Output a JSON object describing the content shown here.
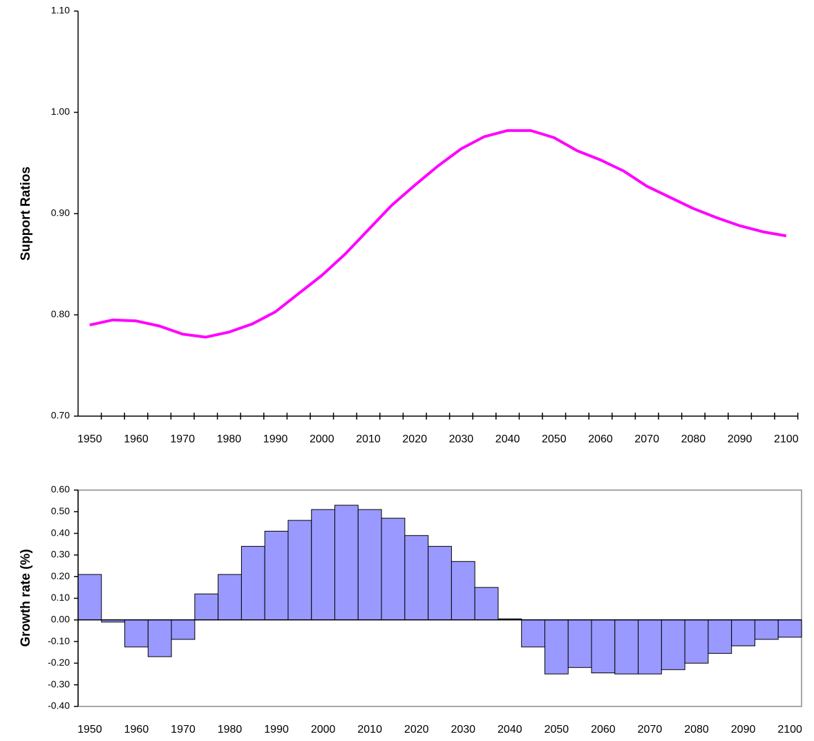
{
  "chart_data": [
    {
      "type": "line",
      "ylabel": "Support Ratios",
      "color": "#ff00ff",
      "categories": [
        "1950",
        null,
        "1960",
        null,
        "1970",
        null,
        "1980",
        null,
        "1990",
        null,
        "2000",
        null,
        "2010",
        null,
        "2020",
        null,
        "2030",
        null,
        "2040",
        null,
        "2050",
        null,
        "2060",
        null,
        "2070",
        null,
        "2080",
        null,
        "2090",
        null,
        "2100"
      ],
      "values": [
        0.79,
        0.795,
        0.794,
        0.789,
        0.781,
        0.778,
        0.783,
        0.791,
        0.803,
        0.821,
        0.839,
        0.86,
        0.884,
        0.908,
        0.928,
        0.947,
        0.964,
        0.976,
        0.982,
        0.982,
        0.975,
        0.962,
        0.953,
        0.942,
        0.927,
        0.916,
        0.905,
        0.896,
        0.888,
        0.882,
        0.878
      ],
      "ylim": [
        0.7,
        1.1
      ],
      "yticks": [
        {
          "value": 0.7,
          "label": "0.70"
        },
        {
          "value": 0.8,
          "label": "0.80"
        },
        {
          "value": 0.9,
          "label": "0.90"
        },
        {
          "value": 1.0,
          "label": "1.00"
        },
        {
          "value": 1.1,
          "label": "1.10"
        }
      ]
    },
    {
      "type": "bar",
      "ylabel": "Growth rate (%)",
      "color": "#9999ff",
      "categories": [
        "1950",
        null,
        "1960",
        null,
        "1970",
        null,
        "1980",
        null,
        "1990",
        null,
        "2000",
        null,
        "2010",
        null,
        "2020",
        null,
        "2030",
        null,
        "2040",
        null,
        "2050",
        null,
        "2060",
        null,
        "2070",
        null,
        "2080",
        null,
        "2090",
        null,
        "2100"
      ],
      "values": [
        0.21,
        -0.01,
        -0.125,
        -0.17,
        -0.09,
        0.12,
        0.21,
        0.34,
        0.41,
        0.46,
        0.51,
        0.53,
        0.51,
        0.47,
        0.39,
        0.34,
        0.27,
        0.15,
        0.005,
        -0.125,
        -0.25,
        -0.22,
        -0.245,
        -0.25,
        -0.25,
        -0.23,
        -0.2,
        -0.155,
        -0.12,
        -0.09,
        -0.08
      ],
      "ylim": [
        -0.4,
        0.6
      ],
      "yticks": [
        {
          "value": -0.4,
          "label": "-0.40"
        },
        {
          "value": -0.3,
          "label": "-0.30"
        },
        {
          "value": -0.2,
          "label": "-0.20"
        },
        {
          "value": -0.1,
          "label": "-0.10"
        },
        {
          "value": 0,
          "label": "0.00"
        },
        {
          "value": 0.1,
          "label": "0.10"
        },
        {
          "value": 0.2,
          "label": "0.20"
        },
        {
          "value": 0.3,
          "label": "0.30"
        },
        {
          "value": 0.4,
          "label": "0.40"
        },
        {
          "value": 0.5,
          "label": "0.50"
        },
        {
          "value": 0.6,
          "label": "0.60"
        }
      ]
    }
  ]
}
